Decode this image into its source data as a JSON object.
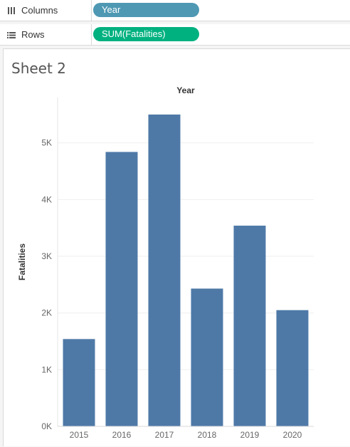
{
  "shelves": {
    "columns": {
      "label": "Columns",
      "pill": "Year",
      "pill_color": "#4e98b3",
      "icon": "columns-icon"
    },
    "rows": {
      "label": "Rows",
      "pill": "SUM(Fatalities)",
      "pill_color": "#00b180",
      "icon": "rows-icon"
    }
  },
  "sheet": {
    "title": "Sheet 2"
  },
  "chart_data": {
    "type": "bar",
    "top_axis_label": "Year",
    "ylabel": "Fatalities",
    "categories": [
      "2015",
      "2016",
      "2017",
      "2018",
      "2019",
      "2020"
    ],
    "values": [
      1540,
      4840,
      5500,
      2430,
      3540,
      2050
    ],
    "ylim": [
      0,
      5800
    ],
    "yticks": [
      0,
      1000,
      2000,
      3000,
      4000,
      5000
    ],
    "ytick_labels": [
      "0K",
      "1K",
      "2K",
      "3K",
      "4K",
      "5K"
    ],
    "bar_color": "#4e79a7",
    "grid": true
  }
}
